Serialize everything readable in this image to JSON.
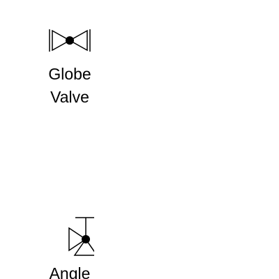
{
  "palette": {
    "items": [
      {
        "label": "Globe\nValve",
        "icon": "globe-valve-icon"
      },
      {
        "label": "Angle",
        "icon": "angle-valve-icon"
      }
    ]
  },
  "colors": {
    "stroke": "#000000",
    "background": "#ffffff"
  }
}
